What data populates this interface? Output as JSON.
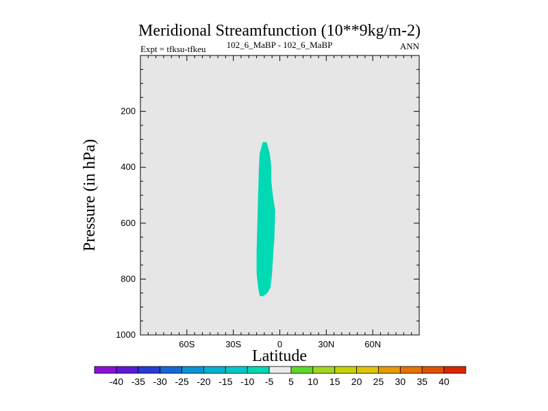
{
  "chart_data": {
    "type": "contour",
    "title": "Meridional Streamfunction (10**9kg/m-2)",
    "left_subtitle": "Expt = tfksu-tfkeu",
    "center_subtitle": "102_6_MaBP - 102_6_MaBP",
    "right_subtitle": "ANN",
    "xlabel": "Latitude",
    "ylabel": "Pressure (in hPa)",
    "xlim": [
      -90,
      90
    ],
    "ylim": [
      0,
      1000
    ],
    "y_inverted": true,
    "x_ticks": [
      {
        "value": -60,
        "label": "60S"
      },
      {
        "value": -30,
        "label": "30S"
      },
      {
        "value": 0,
        "label": "0"
      },
      {
        "value": 30,
        "label": "30N"
      },
      {
        "value": 60,
        "label": "60N"
      }
    ],
    "y_ticks": [
      {
        "value": 200,
        "label": "200"
      },
      {
        "value": 400,
        "label": "400"
      },
      {
        "value": 600,
        "label": "600"
      },
      {
        "value": 800,
        "label": "800"
      },
      {
        "value": 1000,
        "label": "1000"
      }
    ],
    "background_color": "#e6e6e6",
    "contour_region": {
      "level_range": "-10 to -5",
      "color": "#00d9b4",
      "outline": [
        [
          -11,
          310
        ],
        [
          -8.5,
          310
        ],
        [
          -6.5,
          350
        ],
        [
          -5.5,
          400
        ],
        [
          -5.5,
          450
        ],
        [
          -4.5,
          500
        ],
        [
          -3,
          555
        ],
        [
          -3.5,
          650
        ],
        [
          -4.5,
          730
        ],
        [
          -5,
          780
        ],
        [
          -6,
          830
        ],
        [
          -8,
          850
        ],
        [
          -11,
          862
        ],
        [
          -13,
          860
        ],
        [
          -14,
          830
        ],
        [
          -15,
          780
        ],
        [
          -15,
          700
        ],
        [
          -14.5,
          600
        ],
        [
          -14,
          500
        ],
        [
          -13.5,
          400
        ],
        [
          -13,
          350
        ]
      ]
    },
    "colorbar": {
      "labels": [
        "-40",
        "-35",
        "-30",
        "-25",
        "-20",
        "-15",
        "-10",
        "-5",
        "5",
        "10",
        "15",
        "20",
        "25",
        "30",
        "35",
        "40"
      ],
      "colors": [
        "#8a10d6",
        "#5c18d8",
        "#2a3ad6",
        "#1468d6",
        "#0a96d4",
        "#00b2d2",
        "#00c8c8",
        "#00d9b4",
        "#eaeaea",
        "#5cd82a",
        "#a0d820",
        "#c8d200",
        "#e0c400",
        "#e89a00",
        "#e67200",
        "#e05000",
        "#dc2600"
      ]
    }
  }
}
